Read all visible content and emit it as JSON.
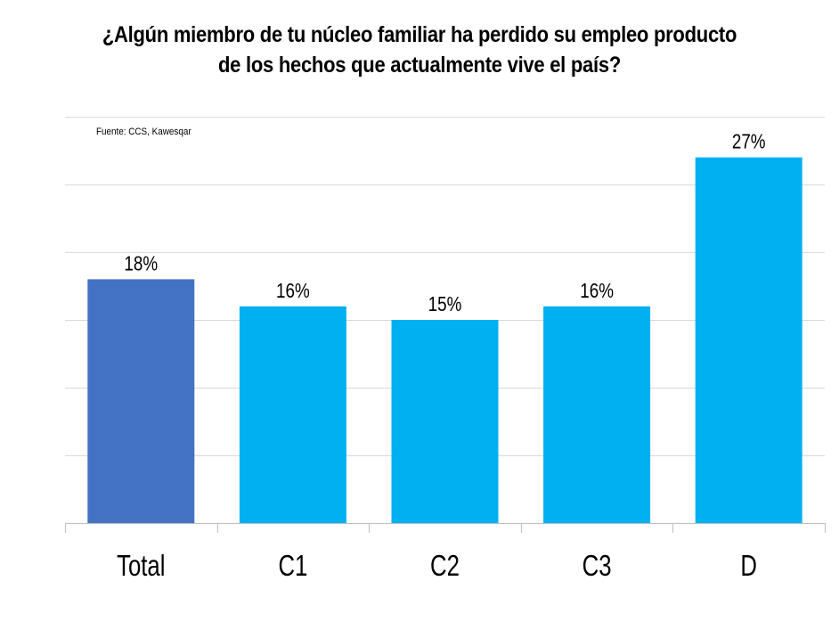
{
  "chart_data": {
    "type": "bar",
    "title_lines": [
      "¿Algún miembro de tu núcleo familiar ha perdido su empleo producto",
      "de los hechos que actualmente vive el país?"
    ],
    "source": "Fuente: CCS, Kawesqar",
    "categories": [
      "Total",
      "C1",
      "C2",
      "C3",
      "D"
    ],
    "values": [
      18,
      16,
      15,
      16,
      27
    ],
    "data_labels": [
      "18%",
      "16%",
      "15%",
      "16%",
      "27%"
    ],
    "bar_colors": [
      "#4472C4",
      "#00B0F0",
      "#00B0F0",
      "#00B0F0",
      "#00B0F0"
    ],
    "ylim": [
      0,
      30
    ],
    "grid": true,
    "gridline_color": "#D9D9D9",
    "axis_color": "#BFBFBF"
  }
}
